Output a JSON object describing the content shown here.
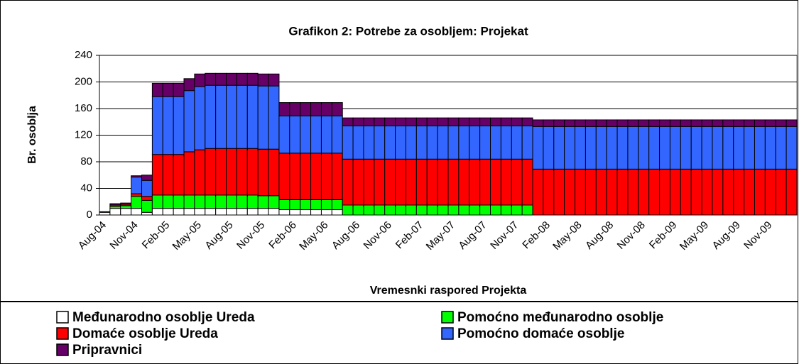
{
  "chart_data": {
    "type": "bar",
    "stacked": true,
    "title": "Grafikon 2: Potrebe za osobljem: Projekat",
    "x_label": "Vremesnki raspored Projekta",
    "y_label": "Br. osoblja",
    "categories": [
      "Aug-04",
      null,
      null,
      "Nov-04",
      null,
      null,
      "Feb-05",
      null,
      null,
      "May-05",
      null,
      null,
      "Aug-05",
      null,
      null,
      "Nov-05",
      null,
      null,
      "Feb-06",
      null,
      null,
      "May-06",
      null,
      null,
      "Aug-06",
      null,
      null,
      "Nov-06",
      null,
      null,
      "Feb-07",
      null,
      null,
      "May-07",
      null,
      null,
      "Aug-07",
      null,
      null,
      "Nov-07",
      null,
      null,
      "Feb-08",
      null,
      null,
      "May-08",
      null,
      null,
      "Aug-08",
      null,
      null,
      "Nov-08",
      null,
      null,
      "Feb-09",
      null,
      null,
      "May-09",
      null,
      null,
      "Aug-09",
      null,
      null,
      "Nov-09",
      null,
      null
    ],
    "series": [
      {
        "name": "Međunarodno osoblje Ureda",
        "color": "#ffffff",
        "values": [
          4,
          10,
          10,
          10,
          4,
          10,
          10,
          10,
          10,
          10,
          10,
          10,
          10,
          10,
          10,
          10,
          10,
          8,
          8,
          8,
          8,
          8,
          8,
          0,
          0,
          0,
          0,
          0,
          0,
          0,
          0,
          0,
          0,
          0,
          0,
          0,
          0,
          0,
          0,
          0,
          0,
          0,
          0,
          0,
          0,
          0,
          0,
          0,
          0,
          0,
          0,
          0,
          0,
          0,
          0,
          0,
          0,
          0,
          0,
          0,
          0,
          0,
          0,
          0,
          0,
          0
        ]
      },
      {
        "name": "Pomoćno međunarodno osoblje",
        "color": "#00ff00",
        "values": [
          0,
          3,
          4,
          18,
          18,
          20,
          20,
          20,
          20,
          20,
          20,
          20,
          20,
          20,
          20,
          19,
          19,
          15,
          15,
          15,
          15,
          15,
          15,
          15,
          15,
          15,
          15,
          15,
          15,
          15,
          15,
          15,
          15,
          15,
          15,
          15,
          15,
          15,
          15,
          15,
          15,
          0,
          0,
          0,
          0,
          0,
          0,
          0,
          0,
          0,
          0,
          0,
          0,
          0,
          0,
          0,
          0,
          0,
          0,
          0,
          0,
          0,
          0,
          0,
          0,
          0
        ]
      },
      {
        "name": "Domaće osoblje Ureda",
        "color": "#ff0000",
        "values": [
          0,
          2,
          2,
          4,
          6,
          61,
          61,
          61,
          65,
          68,
          70,
          70,
          70,
          70,
          70,
          70,
          70,
          70,
          70,
          70,
          70,
          70,
          70,
          69,
          69,
          69,
          69,
          69,
          69,
          69,
          69,
          69,
          69,
          69,
          69,
          69,
          69,
          69,
          69,
          69,
          69,
          69,
          69,
          69,
          69,
          69,
          69,
          69,
          69,
          69,
          69,
          69,
          69,
          69,
          69,
          69,
          69,
          69,
          69,
          69,
          69,
          69,
          69,
          69,
          69,
          69
        ]
      },
      {
        "name": "Pomoćno domaće osoblje",
        "color": "#3366ff",
        "values": [
          0,
          0,
          0,
          25,
          24,
          87,
          87,
          87,
          92,
          95,
          95,
          95,
          95,
          95,
          95,
          95,
          95,
          56,
          56,
          56,
          56,
          56,
          56,
          50,
          50,
          50,
          50,
          50,
          50,
          50,
          50,
          50,
          50,
          50,
          50,
          50,
          50,
          50,
          50,
          50,
          50,
          64,
          64,
          64,
          64,
          64,
          64,
          64,
          64,
          64,
          64,
          64,
          64,
          64,
          64,
          64,
          64,
          64,
          64,
          64,
          64,
          64,
          64,
          64,
          64,
          64
        ]
      },
      {
        "name": "Pripravnici",
        "color": "#660066",
        "values": [
          1,
          2,
          2,
          2,
          8,
          20,
          20,
          20,
          18,
          19,
          18,
          18,
          18,
          18,
          18,
          18,
          18,
          20,
          20,
          20,
          20,
          20,
          20,
          12,
          12,
          12,
          12,
          12,
          12,
          12,
          12,
          12,
          12,
          12,
          12,
          12,
          12,
          12,
          12,
          12,
          12,
          10,
          10,
          10,
          10,
          10,
          10,
          10,
          10,
          10,
          10,
          10,
          10,
          10,
          10,
          10,
          10,
          10,
          10,
          10,
          10,
          10,
          10,
          10,
          10,
          10
        ]
      }
    ],
    "ylim": [
      0,
      240
    ],
    "yticks": [
      0,
      40,
      80,
      120,
      160,
      200,
      240
    ],
    "grid": true
  }
}
